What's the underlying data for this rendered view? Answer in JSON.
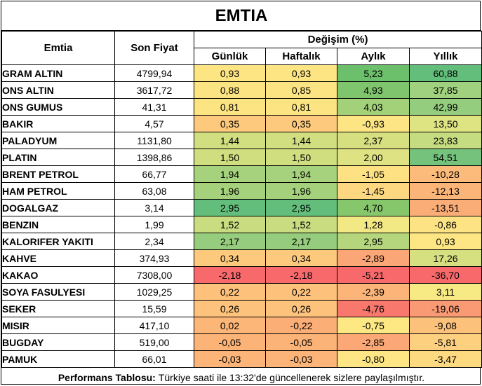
{
  "title": "EMTIA",
  "headers": {
    "commodity": "Emtia",
    "last_price": "Son Fiyat",
    "change_group": "Değişim (%)",
    "daily": "Günlük",
    "weekly": "Haftalık",
    "monthly": "Aylık",
    "yearly": "Yıllık"
  },
  "rows": [
    {
      "name": "GRAM ALTIN",
      "price": "4799,94",
      "daily": "0,93",
      "weekly": "0,93",
      "monthly": "5,23",
      "yearly": "60,88",
      "colors": [
        "#fde583",
        "#fde583",
        "#6cbf6b",
        "#63be7b"
      ]
    },
    {
      "name": "ONS ALTIN",
      "price": "3617,72",
      "daily": "0,88",
      "weekly": "0,85",
      "monthly": "4,93",
      "yearly": "37,85",
      "colors": [
        "#fce482",
        "#fce482",
        "#7ec56d",
        "#9fd17e"
      ]
    },
    {
      "name": "ONS GUMUS",
      "price": "41,31",
      "daily": "0,81",
      "weekly": "0,81",
      "monthly": "4,03",
      "yearly": "42,99",
      "colors": [
        "#fde482",
        "#fde482",
        "#a3d17a",
        "#93cd7d"
      ]
    },
    {
      "name": "BAKIR",
      "price": "4,57",
      "daily": "0,35",
      "weekly": "0,35",
      "monthly": "-0,93",
      "yearly": "13,50",
      "colors": [
        "#fdca7d",
        "#fdca7d",
        "#fde583",
        "#dfe482"
      ]
    },
    {
      "name": "PALADYUM",
      "price": "1131,80",
      "daily": "1,44",
      "weekly": "1,44",
      "monthly": "2,37",
      "yearly": "23,83",
      "colors": [
        "#d2df80",
        "#d2df80",
        "#d7e081",
        "#c6dc80"
      ]
    },
    {
      "name": "PLATIN",
      "price": "1398,86",
      "daily": "1,50",
      "weekly": "1,50",
      "monthly": "2,00",
      "yearly": "54,51",
      "colors": [
        "#d0de80",
        "#d0de80",
        "#dfe282",
        "#75c27c"
      ]
    },
    {
      "name": "BRENT PETROL",
      "price": "66,77",
      "daily": "1,94",
      "weekly": "1,94",
      "monthly": "-1,05",
      "yearly": "-10,28",
      "colors": [
        "#a7d27d",
        "#a7d27d",
        "#fde182",
        "#fcbb7a"
      ]
    },
    {
      "name": "HAM PETROL",
      "price": "63,08",
      "daily": "1,96",
      "weekly": "1,96",
      "monthly": "-1,45",
      "yearly": "-12,13",
      "colors": [
        "#a5d17d",
        "#a5d17d",
        "#fdd880",
        "#fbb579"
      ]
    },
    {
      "name": "DOGALGAZ",
      "price": "3,14",
      "daily": "2,95",
      "weekly": "2,95",
      "monthly": "4,70",
      "yearly": "-13,51",
      "colors": [
        "#63be7b",
        "#63be7b",
        "#87c76c",
        "#fbad77"
      ]
    },
    {
      "name": "BENZIN",
      "price": "1,99",
      "daily": "1,52",
      "weekly": "1,52",
      "monthly": "1,28",
      "yearly": "-0,86",
      "colors": [
        "#cadc80",
        "#cadc80",
        "#f2e884",
        "#fde384"
      ]
    },
    {
      "name": "KALORIFER YAKITI",
      "price": "2,34",
      "daily": "2,17",
      "weekly": "2,17",
      "monthly": "2,95",
      "yearly": "0,93",
      "colors": [
        "#96cc7d",
        "#96cc7d",
        "#b6d67e",
        "#fde683"
      ]
    },
    {
      "name": "KAHVE",
      "price": "374,93",
      "daily": "0,34",
      "weekly": "0,34",
      "monthly": "-2,89",
      "yearly": "17,26",
      "colors": [
        "#fdc97c",
        "#fdc97c",
        "#fba676",
        "#d6e081"
      ]
    },
    {
      "name": "KAKAO",
      "price": "7308,00",
      "daily": "-2,18",
      "weekly": "-2,18",
      "monthly": "-5,21",
      "yearly": "-36,70",
      "colors": [
        "#f8696b",
        "#f8696b",
        "#f8696b",
        "#f8696b"
      ]
    },
    {
      "name": "SOYA FASULYESI",
      "price": "1029,25",
      "daily": "0,22",
      "weekly": "0,22",
      "monthly": "-2,39",
      "yearly": "3,11",
      "colors": [
        "#fdc17b",
        "#fdc17b",
        "#fcb478",
        "#f7e983"
      ]
    },
    {
      "name": "SEKER",
      "price": "15,59",
      "daily": "0,26",
      "weekly": "0,26",
      "monthly": "-4,76",
      "yearly": "-19,06",
      "colors": [
        "#fdc37c",
        "#fdc37c",
        "#f9786d",
        "#fa9a74"
      ]
    },
    {
      "name": "MISIR",
      "price": "417,10",
      "daily": "0,02",
      "weekly": "-0,22",
      "monthly": "-0,75",
      "yearly": "-9,08",
      "colors": [
        "#fcb778",
        "#fcae77",
        "#fde883",
        "#fcc17b"
      ]
    },
    {
      "name": "BUGDAY",
      "price": "519,00",
      "daily": "-0,05",
      "weekly": "-0,05",
      "monthly": "-2,85",
      "yearly": "-5,81",
      "colors": [
        "#fcb377",
        "#fcb377",
        "#fba776",
        "#fcd07e"
      ]
    },
    {
      "name": "PAMUK",
      "price": "66,01",
      "daily": "-0,03",
      "weekly": "-0,03",
      "monthly": "-0,80",
      "yearly": "-3,47",
      "colors": [
        "#fcb478",
        "#fcb478",
        "#fde683",
        "#fdd980"
      ]
    }
  ],
  "footer": {
    "label": "Performans Tablosu:",
    "text": "Türkiye saati ile 13:32'de güncellenerek sizlere paylaşılmıştır."
  }
}
